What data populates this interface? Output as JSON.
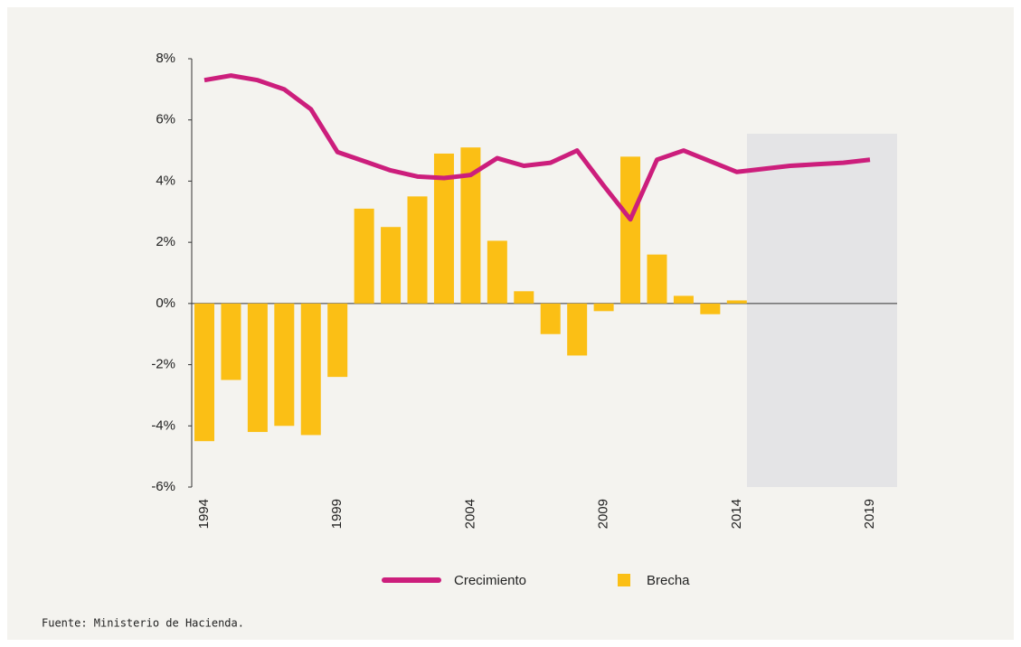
{
  "chart_data": {
    "type": "bar_line",
    "source": "Fuente: Ministerio de Hacienda.",
    "categories": [
      "1994",
      null,
      null,
      null,
      null,
      "1999",
      null,
      null,
      null,
      null,
      "2004",
      null,
      null,
      null,
      null,
      "2009",
      null,
      null,
      null,
      null,
      "2014",
      null,
      null,
      null,
      null,
      "2019"
    ],
    "series": [
      {
        "name": "Crecimiento",
        "type": "line",
        "color": "#cc1e7c",
        "values": [
          7.3,
          7.45,
          7.3,
          7.0,
          6.35,
          4.95,
          4.65,
          4.35,
          4.15,
          4.1,
          4.2,
          4.75,
          4.5,
          4.6,
          5.0,
          3.85,
          2.75,
          4.7,
          5.0,
          4.65,
          4.3,
          4.4,
          4.5,
          4.55,
          4.6,
          4.7
        ]
      },
      {
        "name": "Brecha",
        "type": "bar",
        "color": "#fbbf15",
        "values": [
          -4.5,
          -2.5,
          -4.2,
          -4.0,
          -4.3,
          -2.4,
          3.1,
          2.5,
          3.5,
          4.9,
          5.1,
          2.05,
          0.4,
          -1.0,
          -1.7,
          -0.25,
          4.8,
          1.6,
          0.25,
          -0.35,
          0.1,
          null,
          null,
          null,
          null,
          null
        ]
      }
    ],
    "ylim": [
      -6,
      8
    ],
    "yticks": [
      {
        "value": -6,
        "label": "-6%"
      },
      {
        "value": -4,
        "label": "-4%"
      },
      {
        "value": -2,
        "label": "-2%"
      },
      {
        "value": 0,
        "label": "0%"
      },
      {
        "value": 2,
        "label": "2%"
      },
      {
        "value": 4,
        "label": "4%"
      },
      {
        "value": 6,
        "label": "6%"
      },
      {
        "value": 8,
        "label": "8%"
      }
    ]
  }
}
